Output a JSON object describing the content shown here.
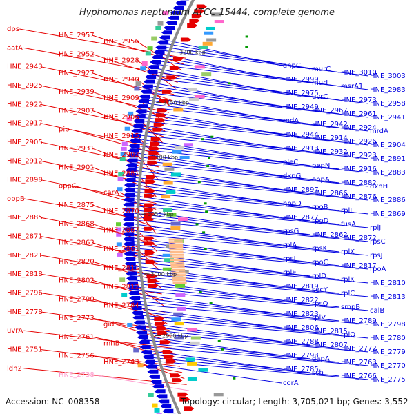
{
  "title": "Hyphomonas neptunium ATCC 15444, complete genome",
  "footer": {
    "accession": "Accession: NC_008358",
    "topology": "Topology: circular; Length: 3,705,021 bp; Genes: 3,552"
  },
  "colors": {
    "forward": "#e60000",
    "reverse": "#0000e0",
    "highlight": "#ff99cc",
    "backbone": "#888888"
  },
  "kbp_labels": [
    "3200 kbp",
    "3150 kbp",
    "3100 kbp",
    "3050 kbp",
    "3000 kbp",
    "2950 kbp"
  ],
  "left_labels": [
    "dps",
    "HNE_2957",
    "HNE_2956",
    "aatA",
    "HNE_2952",
    "HNE_2928",
    "HNE_2943",
    "HNE_2927",
    "HNE_2940",
    "HNE_2925",
    "HNE_2939",
    "HNE_2909",
    "HNE_2922",
    "HNE_2907",
    "HNE_2906",
    "HNE_2917",
    "pip",
    "HNE_2915",
    "HNE_2905",
    "HNE_2931",
    "HNE_2902",
    "HNE_2912",
    "HNE_2901",
    "HNE_2881",
    "HNE_2898",
    "oppC",
    "carA",
    "oppB",
    "HNE_2875",
    "HNE_2870",
    "HNE_2885",
    "HNE_2868",
    "HNE_2867",
    "HNE_2871",
    "HNE_2863",
    "HNE_2861",
    "HNE_2821",
    "HNE_2820",
    "HNE_2811",
    "HNE_2818",
    "HNE_2802",
    "HNE_2812",
    "HNE_2796",
    "HNE_2790",
    "HNE_2784",
    "HNE_2778",
    "HNE_2773",
    "gid",
    "uvrA",
    "HNE_2761",
    "rnhB",
    "HNE_2751",
    "HNE_2756",
    "HNE_2743",
    "ldh2",
    "HNE_2738"
  ],
  "right_labels": [
    "ahpC",
    "murC",
    "HNE_3010",
    "HNE_3003",
    "HNE_2999",
    "murI",
    "msrA1",
    "HNE_2983",
    "HNE_2975",
    "uvrC",
    "HNE_2973",
    "HNE_2958",
    "HNE_2949",
    "HNE_2967",
    "HNE_2961",
    "HNE_2941",
    "rodA",
    "HNE_2942",
    "HNE_2924",
    "mrdA",
    "HNE_2944",
    "HNE_2914",
    "HNE_2926",
    "HNE_2904",
    "HNE_2913",
    "HNE_2932",
    "HNE_2923",
    "HNE_2891",
    "pleC",
    "pepN",
    "HNE_2916",
    "HNE_2883",
    "dxnG",
    "oppA",
    "HNE_2882",
    "dxnH",
    "HNE_2897",
    "HNE_2866",
    "HNE_2876",
    "HNE_2886",
    "hppD",
    "rpoB",
    "rplL",
    "HNE_2869",
    "HNE_2877",
    "rpoD",
    "fusA",
    "rplJ",
    "rpsG",
    "HNE_2862",
    "HNE_2872",
    "rpsC",
    "rplA",
    "rpsK",
    "rplX",
    "rpsJ",
    "rpsL",
    "rpoC",
    "HNE_2817",
    "rpoA",
    "rplE",
    "rplD",
    "rplK",
    "HNE_2810",
    "HNE_2819",
    "secY",
    "rplC",
    "HNE_2813",
    "HNE_2822",
    "rpsQ",
    "smpB",
    "calB",
    "HNE_2823",
    "rplV",
    "HNE_2789",
    "HNE_2798",
    "HNE_2806",
    "HNE_2815",
    "rplQ",
    "HNE_2780",
    "HNE_2788",
    "HNE_2807",
    "HNE_2772",
    "HNE_2779",
    "HNE_2793",
    "dapA",
    "HNE_2763",
    "HNE_2770",
    "HNE_2785",
    "ssb",
    "HNE_2766",
    "HNE_2775",
    "corA"
  ]
}
